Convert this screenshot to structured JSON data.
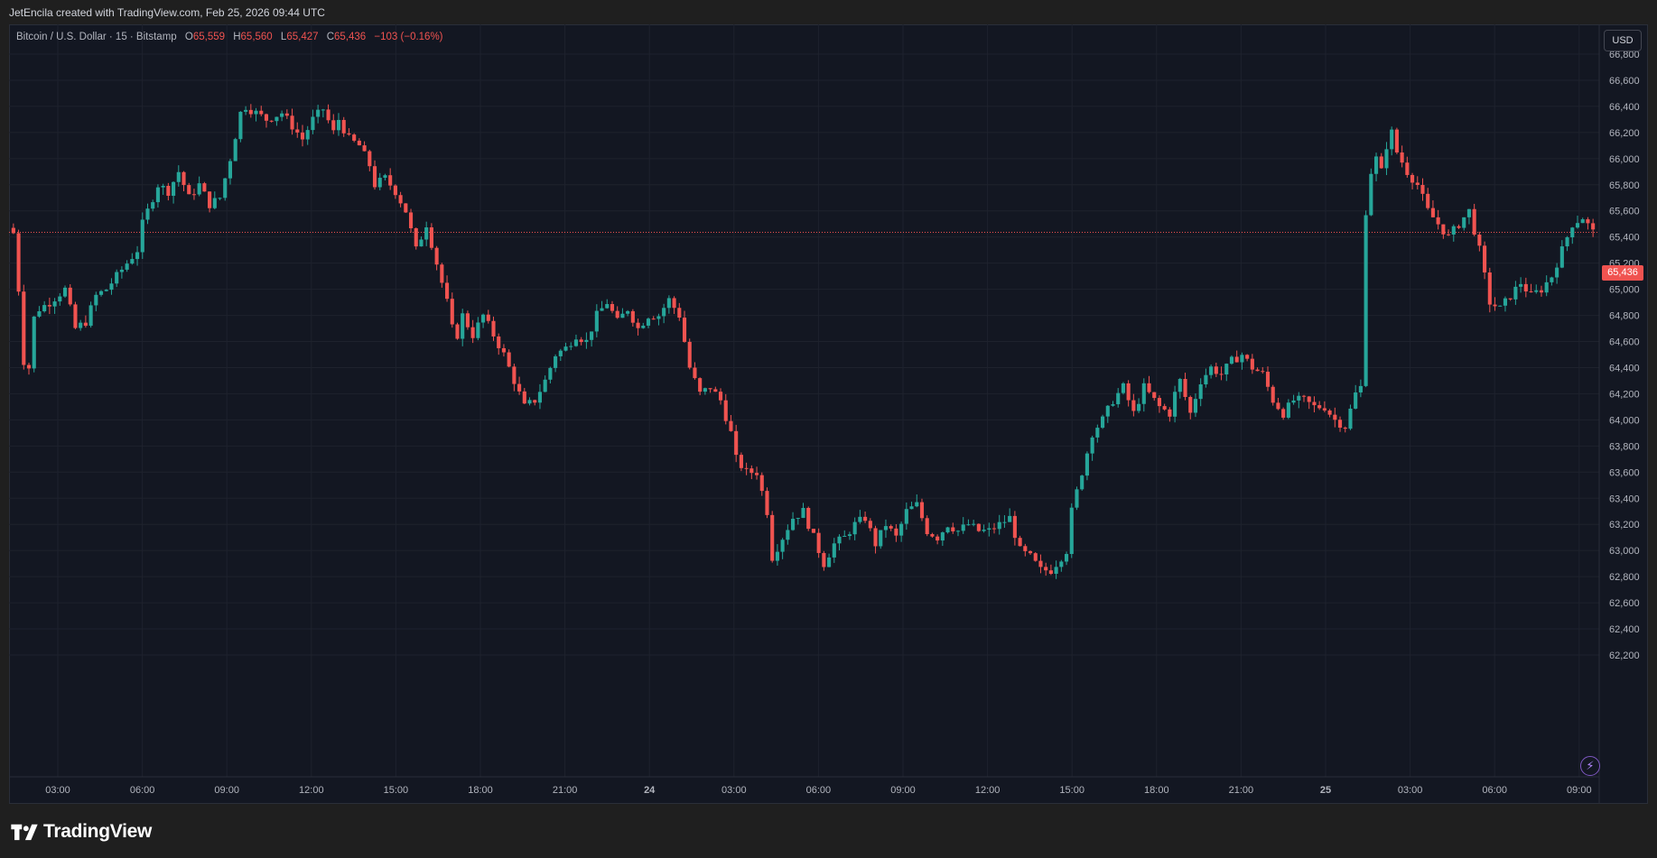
{
  "header": {
    "credit": "JetEncila created with TradingView.com, Feb 25, 2026 09:44 UTC"
  },
  "legend": {
    "symbol": "Bitcoin / U.S. Dollar · 15 · Bitstamp",
    "open_label": "O",
    "open": "65,559",
    "high_label": "H",
    "high": "65,560",
    "low_label": "L",
    "low": "65,427",
    "close_label": "C",
    "close": "65,436",
    "change": "−103 (−0.16%)"
  },
  "currency_button": "USD",
  "last_price_label": "65,436",
  "brand": {
    "name": "TradingView"
  },
  "colors": {
    "up": "#26a69a",
    "down": "#f05350",
    "background": "#131722",
    "grid": "#1e222d",
    "axis_text": "#b2b5be"
  },
  "chart_data": {
    "type": "candlestick",
    "symbol": "BTCUSD",
    "timeframe": "15",
    "exchange": "Bitstamp",
    "last_price": 65436,
    "y_ticks": [
      62200,
      62400,
      62600,
      62800,
      63000,
      63200,
      63400,
      63600,
      63800,
      64000,
      64200,
      64400,
      64600,
      64800,
      65000,
      65200,
      65400,
      65600,
      65800,
      66000,
      66200,
      66400,
      66600,
      66800
    ],
    "y_tick_labels": [
      "62,200",
      "62,400",
      "62,600",
      "62,800",
      "63,000",
      "63,200",
      "63,400",
      "63,600",
      "63,800",
      "64,000",
      "64,200",
      "64,400",
      "64,600",
      "64,800",
      "65,000",
      "65,200",
      "65,400",
      "65,600",
      "65,800",
      "66,000",
      "66,200",
      "66,400",
      "66,600",
      "66,800"
    ],
    "x_tick_labels": [
      "03:00",
      "06:00",
      "09:00",
      "12:00",
      "15:00",
      "18:00",
      "21:00",
      "24",
      "03:00",
      "06:00",
      "09:00",
      "12:00",
      "15:00",
      "18:00",
      "21:00",
      "25",
      "03:00",
      "06:00",
      "09:00"
    ],
    "candle_count": 226,
    "anchors": [
      [
        0,
        65430
      ],
      [
        1,
        65000
      ],
      [
        2,
        64450
      ],
      [
        3,
        64400
      ],
      [
        4,
        64780
      ],
      [
        5,
        64850
      ],
      [
        7,
        64900
      ],
      [
        10,
        65000
      ],
      [
        12,
        64700
      ],
      [
        14,
        64750
      ],
      [
        16,
        64950
      ],
      [
        18,
        65000
      ],
      [
        19,
        65050
      ],
      [
        22,
        65200
      ],
      [
        24,
        65300
      ],
      [
        25,
        65500
      ],
      [
        27,
        65700
      ],
      [
        28,
        65800
      ],
      [
        30,
        65750
      ],
      [
        32,
        65900
      ],
      [
        34,
        65700
      ],
      [
        36,
        65800
      ],
      [
        38,
        65650
      ],
      [
        40,
        65700
      ],
      [
        42,
        66000
      ],
      [
        44,
        66350
      ],
      [
        45,
        66400
      ],
      [
        47,
        66350
      ],
      [
        49,
        66300
      ],
      [
        52,
        66350
      ],
      [
        54,
        66250
      ],
      [
        56,
        66150
      ],
      [
        58,
        66300
      ],
      [
        60,
        66380
      ],
      [
        62,
        66200
      ],
      [
        63,
        66300
      ],
      [
        65,
        66150
      ],
      [
        67,
        66100
      ],
      [
        69,
        65950
      ],
      [
        70,
        65800
      ],
      [
        72,
        65850
      ],
      [
        74,
        65750
      ],
      [
        76,
        65600
      ],
      [
        78,
        65300
      ],
      [
        80,
        65500
      ],
      [
        82,
        65200
      ],
      [
        84,
        64900
      ],
      [
        85,
        64700
      ],
      [
        86,
        64650
      ],
      [
        87,
        64800
      ],
      [
        89,
        64650
      ],
      [
        91,
        64800
      ],
      [
        93,
        64650
      ],
      [
        95,
        64500
      ],
      [
        97,
        64300
      ],
      [
        99,
        64100
      ],
      [
        101,
        64150
      ],
      [
        103,
        64300
      ],
      [
        105,
        64500
      ],
      [
        107,
        64550
      ],
      [
        109,
        64650
      ],
      [
        111,
        64600
      ],
      [
        113,
        64800
      ],
      [
        115,
        64900
      ],
      [
        117,
        64750
      ],
      [
        119,
        64850
      ],
      [
        121,
        64700
      ],
      [
        123,
        64800
      ],
      [
        125,
        64800
      ],
      [
        127,
        64920
      ],
      [
        129,
        64800
      ],
      [
        131,
        64400
      ],
      [
        133,
        64200
      ],
      [
        135,
        64250
      ],
      [
        137,
        64150
      ],
      [
        139,
        63900
      ],
      [
        140,
        63700
      ],
      [
        142,
        63600
      ],
      [
        144,
        63600
      ],
      [
        146,
        63300
      ],
      [
        147,
        62950
      ],
      [
        149,
        63100
      ],
      [
        151,
        63250
      ],
      [
        153,
        63300
      ],
      [
        155,
        63100
      ],
      [
        157,
        62900
      ],
      [
        159,
        63050
      ],
      [
        161,
        63100
      ],
      [
        163,
        63200
      ],
      [
        165,
        63250
      ],
      [
        167,
        63050
      ],
      [
        169,
        63200
      ],
      [
        171,
        63100
      ],
      [
        173,
        63300
      ],
      [
        175,
        63350
      ],
      [
        177,
        63150
      ],
      [
        179,
        63100
      ],
      [
        181,
        63200
      ],
      [
        183,
        63150
      ],
      [
        185,
        63200
      ],
      [
        187,
        63150
      ],
      [
        189,
        63150
      ],
      [
        191,
        63200
      ],
      [
        193,
        63250
      ],
      [
        195,
        63000
      ],
      [
        197,
        62950
      ],
      [
        199,
        62850
      ],
      [
        201,
        62850
      ],
      [
        203,
        62950
      ],
      [
        204,
        63000
      ],
      [
        205,
        63300
      ],
      [
        207,
        63600
      ],
      [
        209,
        63900
      ],
      [
        211,
        64000
      ],
      [
        213,
        64150
      ],
      [
        215,
        64250
      ],
      [
        217,
        64050
      ],
      [
        219,
        64250
      ],
      [
        220,
        64200
      ],
      [
        222,
        64100
      ]
    ],
    "anchors_part2": [
      [
        224,
        64050
      ],
      [
        225,
        64200
      ],
      [
        226,
        64300
      ],
      [
        228,
        64050
      ],
      [
        230,
        64300
      ],
      [
        232,
        64400
      ],
      [
        234,
        64350
      ],
      [
        236,
        64450
      ],
      [
        238,
        64500
      ],
      [
        240,
        64400
      ],
      [
        242,
        64350
      ],
      [
        244,
        64150
      ],
      [
        246,
        64050
      ],
      [
        248,
        64150
      ],
      [
        250,
        64150
      ],
      [
        252,
        64100
      ],
      [
        254,
        64100
      ],
      [
        256,
        64000
      ],
      [
        258,
        63950
      ],
      [
        260,
        64200
      ],
      [
        261,
        64250
      ],
      [
        262,
        65600
      ],
      [
        263,
        65900
      ],
      [
        264,
        66000
      ],
      [
        265,
        65900
      ],
      [
        266,
        66100
      ],
      [
        267,
        66200
      ],
      [
        268,
        66050
      ],
      [
        270,
        65900
      ],
      [
        272,
        65800
      ],
      [
        274,
        65600
      ],
      [
        276,
        65500
      ],
      [
        278,
        65400
      ],
      [
        280,
        65500
      ],
      [
        282,
        65600
      ],
      [
        284,
        65300
      ],
      [
        286,
        64900
      ],
      [
        288,
        64850
      ],
      [
        290,
        64950
      ],
      [
        292,
        65050
      ],
      [
        294,
        64950
      ],
      [
        296,
        65000
      ],
      [
        298,
        65100
      ],
      [
        300,
        65300
      ],
      [
        302,
        65500
      ],
      [
        304,
        65550
      ],
      [
        306,
        65436
      ]
    ],
    "x_label_positions": [
      44,
      89,
      134,
      179,
      224,
      269,
      314,
      359,
      404,
      449,
      494,
      539,
      584,
      629,
      674,
      719,
      764,
      809,
      854
    ]
  }
}
